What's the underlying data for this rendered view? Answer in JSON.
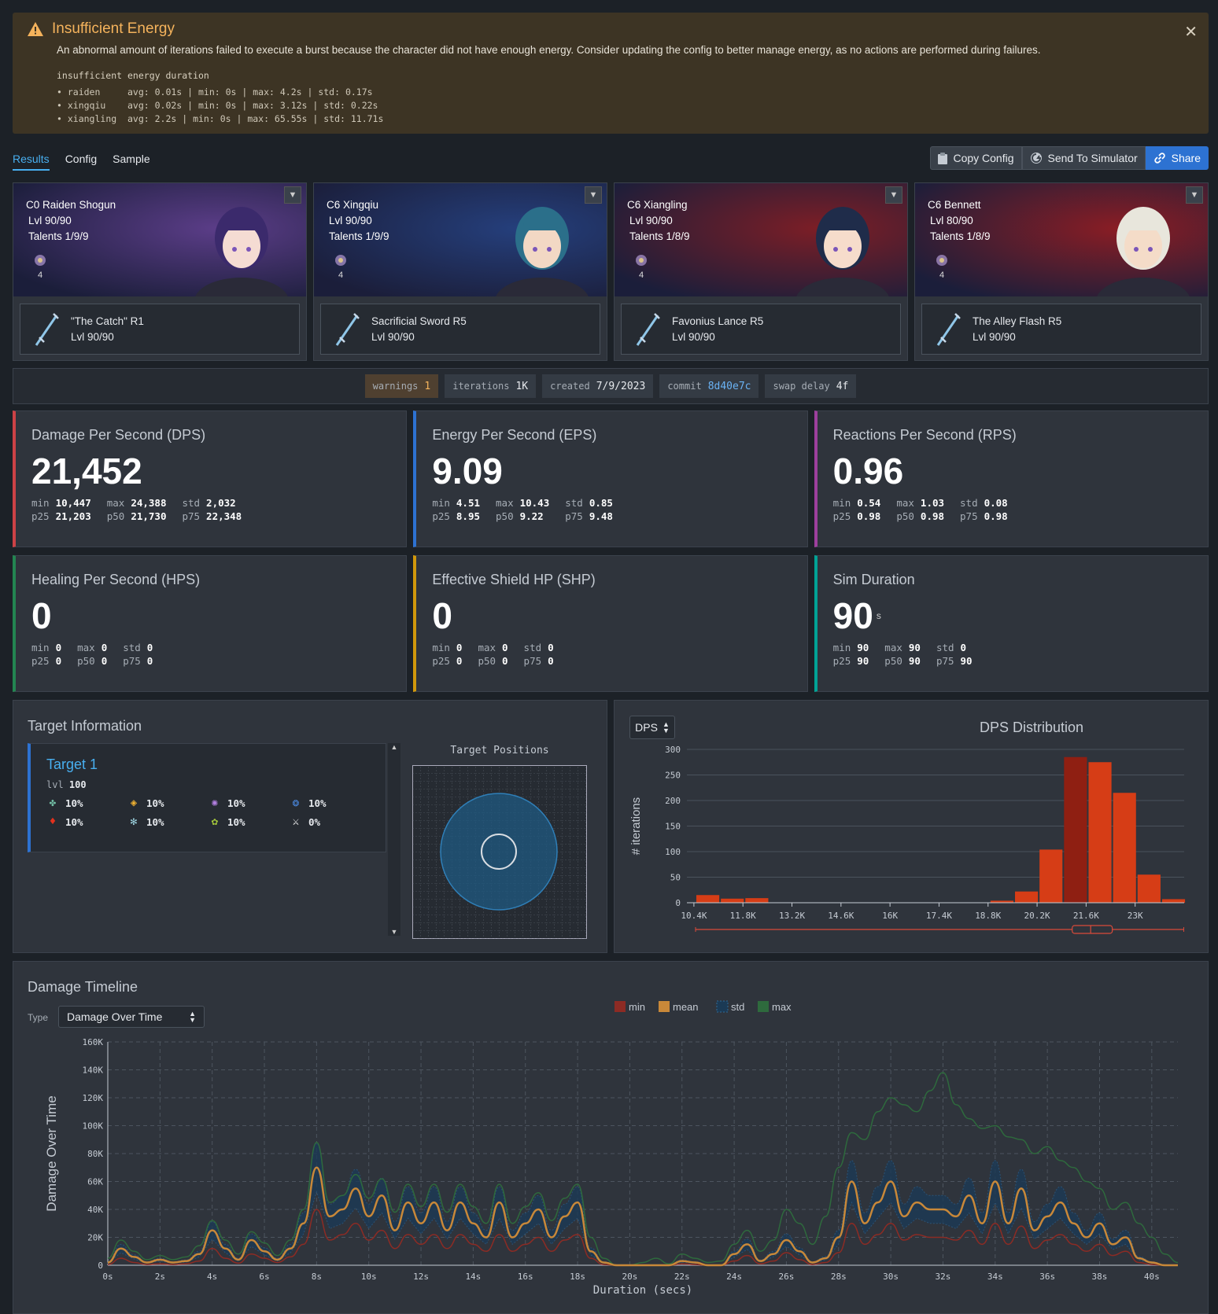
{
  "warning": {
    "title": "Insufficient Energy",
    "description": "An abnormal amount of iterations failed to execute a burst because the character did not have enough energy. Consider updating the config to better manage energy, as no actions are performed during failures.",
    "stats_header": "insufficient energy duration",
    "rows": [
      {
        "name": "raiden",
        "stats": "avg: 0.01s | min: 0s | max: 4.2s | std: 0.17s"
      },
      {
        "name": "xingqiu",
        "stats": "avg: 0.02s | min: 0s | max: 3.12s | std: 0.22s"
      },
      {
        "name": "xiangling",
        "stats": "avg: 2.2s | min: 0s | max: 65.55s | std: 11.71s"
      }
    ]
  },
  "tabs": [
    "Results",
    "Config",
    "Sample"
  ],
  "actions": {
    "copy": "Copy Config",
    "send": "Send To Simulator",
    "share": "Share"
  },
  "characters": [
    {
      "name": "C0 Raiden Shogun",
      "level": "Lvl 90/90",
      "talents": "Talents 1/9/9",
      "cons": "4",
      "weapon": "\"The Catch\" R1",
      "weapon_level": "Lvl 90/90",
      "bg": "#5b3d88",
      "hair": "#3b2a6c",
      "skin": "#f5dcd3"
    },
    {
      "name": "C6 Xingqiu",
      "level": "Lvl 90/90",
      "talents": "Talents 1/9/9",
      "cons": "4",
      "weapon": "Sacrificial Sword R5",
      "weapon_level": "Lvl 90/90",
      "bg": "#253f7c",
      "hair": "#2b6f8a",
      "skin": "#f2d8c4"
    },
    {
      "name": "C6 Xiangling",
      "level": "Lvl 90/90",
      "talents": "Talents 1/8/9",
      "cons": "4",
      "weapon": "Favonius Lance R5",
      "weapon_level": "Lvl 90/90",
      "bg": "#7c1e26",
      "hair": "#1f2c4a",
      "skin": "#f6dccb"
    },
    {
      "name": "C6 Bennett",
      "level": "Lvl 80/90",
      "talents": "Talents 1/8/9",
      "cons": "4",
      "weapon": "The Alley Flash R5",
      "weapon_level": "Lvl 90/90",
      "bg": "#8a1d24",
      "hair": "#e8e6dc",
      "skin": "#f4dcc8"
    }
  ],
  "meta": [
    {
      "k": "warnings",
      "v": "1"
    },
    {
      "k": "iterations",
      "v": "1K"
    },
    {
      "k": "created",
      "v": "7/9/2023"
    },
    {
      "k": "commit",
      "v": "8d40e7c"
    },
    {
      "k": "swap delay",
      "v": "4f"
    }
  ],
  "cards": [
    {
      "title": "Damage Per Second (DPS)",
      "value": "21,452",
      "unit": "",
      "color": "#cd4246",
      "min": "10,447",
      "max": "24,388",
      "std": "2,032",
      "p25": "21,203",
      "p50": "21,730",
      "p75": "22,348"
    },
    {
      "title": "Energy Per Second (EPS)",
      "value": "9.09",
      "unit": "",
      "color": "#2d72d2",
      "min": "4.51",
      "max": "10.43",
      "std": "0.85",
      "p25": "8.95",
      "p50": "9.22",
      "p75": "9.48"
    },
    {
      "title": "Reactions Per Second (RPS)",
      "value": "0.96",
      "unit": "",
      "color": "#9d3f9d",
      "min": "0.54",
      "max": "1.03",
      "std": "0.08",
      "p25": "0.98",
      "p50": "0.98",
      "p75": "0.98"
    },
    {
      "title": "Healing Per Second (HPS)",
      "value": "0",
      "unit": "",
      "color": "#238551",
      "min": "0",
      "max": "0",
      "std": "0",
      "p25": "0",
      "p50": "0",
      "p75": "0"
    },
    {
      "title": "Effective Shield HP (SHP)",
      "value": "0",
      "unit": "",
      "color": "#d1980b",
      "min": "0",
      "max": "0",
      "std": "0",
      "p25": "0",
      "p50": "0",
      "p75": "0"
    },
    {
      "title": "Sim Duration",
      "value": "90",
      "unit": "s",
      "color": "#00a396",
      "min": "90",
      "max": "90",
      "std": "0",
      "p25": "90",
      "p50": "90",
      "p75": "90"
    }
  ],
  "stat_keys": {
    "min": "min",
    "max": "max",
    "std": "std",
    "p25": "p25",
    "p50": "p50",
    "p75": "p75"
  },
  "target_info": {
    "title": "Target Information",
    "target_name": "Target 1",
    "lvl_label": "lvl",
    "lvl": "100",
    "res": [
      {
        "icon": "anemo-icon",
        "color": "#74c2a8",
        "v": "10%"
      },
      {
        "icon": "geo-icon",
        "color": "#f0b232",
        "v": "10%"
      },
      {
        "icon": "electro-icon",
        "color": "#b27fe0",
        "v": "10%"
      },
      {
        "icon": "hydro-icon",
        "color": "#4c8de8",
        "v": "10%"
      },
      {
        "icon": "pyro-icon",
        "color": "#e2311d",
        "v": "10%"
      },
      {
        "icon": "cryo-icon",
        "color": "#9fd6e3",
        "v": "10%"
      },
      {
        "icon": "dendro-icon",
        "color": "#a5c83b",
        "v": "10%"
      },
      {
        "icon": "physical-icon",
        "color": "#ffffff",
        "v": "0%"
      }
    ],
    "positions_title": "Target Positions"
  },
  "chart_data": [
    {
      "type": "bar",
      "title": "DPS Distribution",
      "selector": "DPS",
      "ylabel": "# iterations",
      "ylim": [
        0,
        300
      ],
      "yticks": [
        0,
        50,
        100,
        150,
        200,
        250,
        300
      ],
      "xtick_labels": [
        "10.4K",
        "11.8K",
        "13.2K",
        "14.6K",
        "16K",
        "17.4K",
        "18.8K",
        "20.2K",
        "21.6K",
        "23K"
      ],
      "xtick_values": [
        10400,
        11800,
        13200,
        14600,
        16000,
        17400,
        18800,
        20200,
        21600,
        23000
      ],
      "xlim": [
        10200,
        24400
      ],
      "bin_width": 700,
      "bin_starts": [
        10447,
        11147,
        11847,
        12547,
        13247,
        13947,
        14647,
        15347,
        16047,
        16747,
        17447,
        18147,
        18847,
        19547,
        20247,
        20947,
        21647,
        22347,
        23047,
        23747
      ],
      "values": [
        15,
        8,
        9,
        0,
        0,
        0,
        0,
        0,
        0,
        0,
        0,
        0,
        4,
        22,
        104,
        285,
        275,
        215,
        55,
        7
      ],
      "highlight_bin": 15,
      "boxplot": {
        "min": 10447,
        "q1": 21203,
        "median": 21730,
        "q3": 22348,
        "max": 24388
      }
    },
    {
      "type": "area",
      "title": "Damage Timeline",
      "type_label": "Type",
      "type_selected": "Damage Over Time",
      "legend": [
        "min",
        "mean",
        "std",
        "max"
      ],
      "legend_colors": [
        "#8d2b24",
        "#c88839",
        "#1b3a55",
        "#2e6a3d"
      ],
      "ylabel": "Damage Over Time",
      "xlabel": "Duration (secs)",
      "ylim": [
        0,
        160000
      ],
      "yticks": [
        "0",
        "20K",
        "40K",
        "60K",
        "80K",
        "100K",
        "120K",
        "140K",
        "160K"
      ],
      "xticks": [
        "0s",
        "2s",
        "4s",
        "6s",
        "8s",
        "10s",
        "12s",
        "14s",
        "16s",
        "18s",
        "20s",
        "22s",
        "24s",
        "26s",
        "28s",
        "30s",
        "32s",
        "34s",
        "36s",
        "38s",
        "40s"
      ],
      "xlim": [
        0,
        41
      ],
      "x": [
        0,
        0.5,
        1,
        1.5,
        2,
        2.5,
        3,
        3.5,
        4,
        4.5,
        5,
        5.5,
        6,
        6.5,
        7,
        7.5,
        8,
        8.5,
        9,
        9.5,
        10,
        10.5,
        11,
        11.5,
        12,
        12.5,
        13,
        13.5,
        14,
        14.5,
        15,
        15.5,
        16,
        16.5,
        17,
        17.5,
        18,
        18.5,
        19,
        19.5,
        20,
        20.5,
        21,
        21.5,
        22,
        22.5,
        23,
        23.5,
        24,
        24.5,
        25,
        25.5,
        26,
        26.5,
        27,
        27.5,
        28,
        28.5,
        29,
        29.5,
        30,
        30.5,
        31,
        31.5,
        32,
        32.5,
        33,
        33.5,
        34,
        34.5,
        35,
        35.5,
        36,
        36.5,
        37,
        37.5,
        38,
        38.5,
        39,
        39.5,
        40,
        40.5,
        41
      ],
      "mean": [
        2000,
        12000,
        6000,
        2000,
        4000,
        2000,
        3000,
        8000,
        25000,
        12000,
        4000,
        18000,
        10000,
        4000,
        12000,
        30000,
        70000,
        35000,
        40000,
        55000,
        35000,
        50000,
        25000,
        45000,
        30000,
        45000,
        25000,
        45000,
        30000,
        20000,
        45000,
        20000,
        30000,
        40000,
        20000,
        35000,
        45000,
        10000,
        2000,
        0,
        0,
        0,
        0,
        0,
        3000,
        2000,
        0,
        0,
        8000,
        15000,
        3000,
        8000,
        18000,
        10000,
        2000,
        5000,
        20000,
        60000,
        30000,
        45000,
        60000,
        35000,
        45000,
        40000,
        40000,
        35000,
        50000,
        30000,
        60000,
        30000,
        55000,
        25000,
        35000,
        45000,
        30000,
        20000,
        30000,
        15000,
        20000,
        5000,
        2000,
        0,
        0
      ],
      "min": [
        500,
        5000,
        2000,
        500,
        1000,
        500,
        1000,
        3000,
        12000,
        5000,
        1500,
        8000,
        5000,
        2000,
        6000,
        15000,
        40000,
        18000,
        22000,
        30000,
        18000,
        25000,
        12000,
        22000,
        15000,
        22000,
        12000,
        22000,
        15000,
        10000,
        22000,
        10000,
        15000,
        20000,
        10000,
        18000,
        22000,
        5000,
        500,
        0,
        0,
        0,
        0,
        0,
        1000,
        500,
        0,
        0,
        3000,
        7000,
        1000,
        3000,
        9000,
        4000,
        500,
        2000,
        9000,
        30000,
        15000,
        22000,
        30000,
        18000,
        22000,
        20000,
        20000,
        18000,
        25000,
        15000,
        30000,
        15000,
        28000,
        12000,
        18000,
        22000,
        15000,
        10000,
        15000,
        7000,
        10000,
        2000,
        500,
        0,
        0
      ],
      "max": [
        5000,
        18000,
        10000,
        4000,
        7000,
        4000,
        6000,
        14000,
        32000,
        18000,
        8000,
        24000,
        16000,
        7000,
        18000,
        40000,
        88000,
        45000,
        50000,
        65000,
        48000,
        62000,
        38000,
        58000,
        42000,
        58000,
        38000,
        58000,
        42000,
        30000,
        58000,
        30000,
        42000,
        52000,
        32000,
        48000,
        58000,
        20000,
        5000,
        0,
        0,
        2000,
        5000,
        1000,
        8000,
        5000,
        2000,
        3000,
        15000,
        25000,
        10000,
        18000,
        40000,
        30000,
        15000,
        35000,
        70000,
        95000,
        90000,
        110000,
        120000,
        115000,
        110000,
        125000,
        138000,
        115000,
        105000,
        98000,
        100000,
        92000,
        90000,
        80000,
        85000,
        75000,
        70000,
        60000,
        55000,
        40000,
        45000,
        30000,
        20000,
        8000,
        2000
      ],
      "std_band": 15000
    }
  ]
}
